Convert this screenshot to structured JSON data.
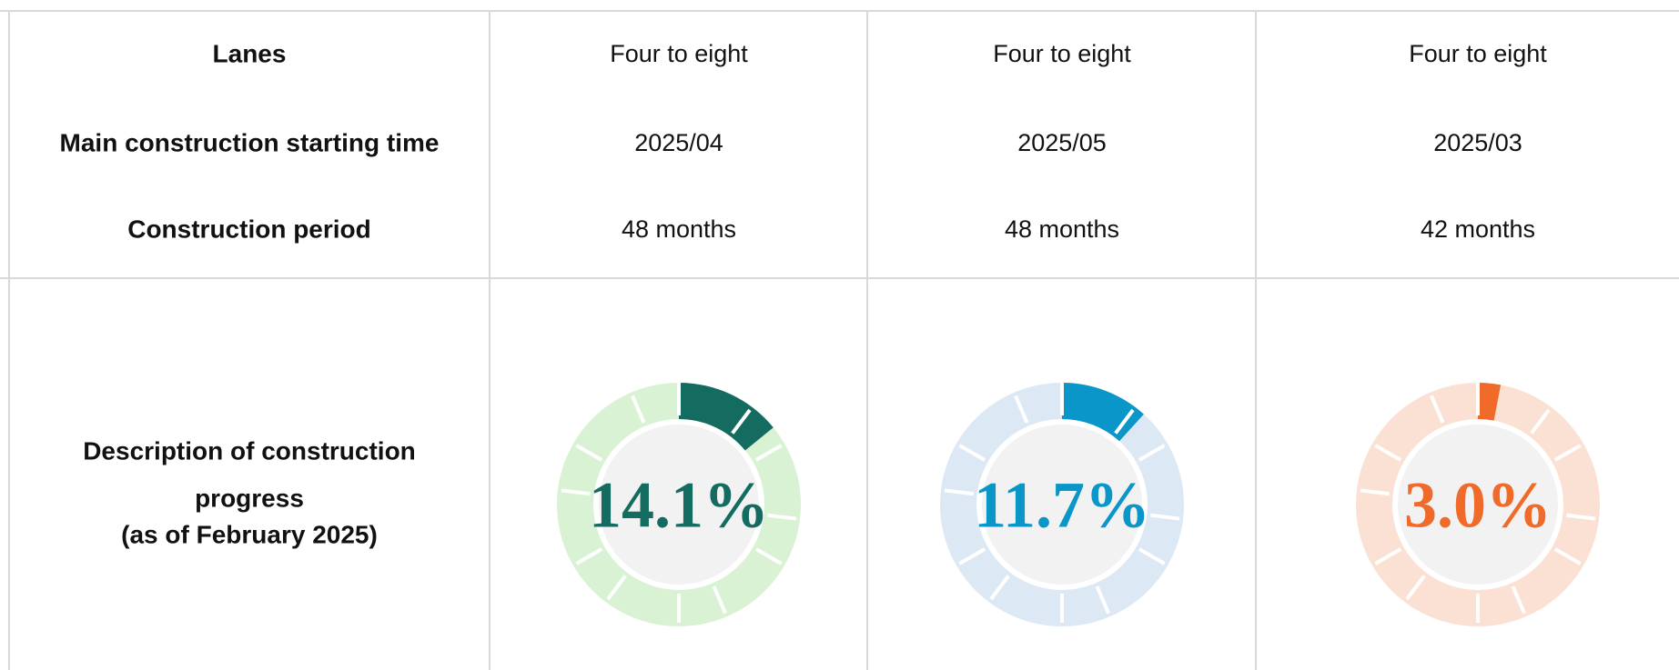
{
  "table": {
    "row_labels": [
      "Lanes",
      "Main construction starting time",
      "Construction period"
    ],
    "columns": [
      {
        "lanes": "Four to eight",
        "start": "2025/04",
        "period": "48 months"
      },
      {
        "lanes": "Four to eight",
        "start": "2025/05",
        "period": "48 months"
      },
      {
        "lanes": "Four to eight",
        "start": "2025/03",
        "period": "42 months"
      }
    ],
    "progress_label": [
      "Description of construction",
      "progress",
      "(as of February 2025)"
    ],
    "progress": [
      {
        "value": 14.1,
        "label": "14.1%",
        "color": "#146b5f",
        "track": "#d9f2d4"
      },
      {
        "value": 11.7,
        "label": "11.7%",
        "color": "#0a96c8",
        "track": "#dce9f5"
      },
      {
        "value": 3.0,
        "label": "3.0%",
        "color": "#f06a2a",
        "track": "#fbe1d4"
      }
    ]
  }
}
